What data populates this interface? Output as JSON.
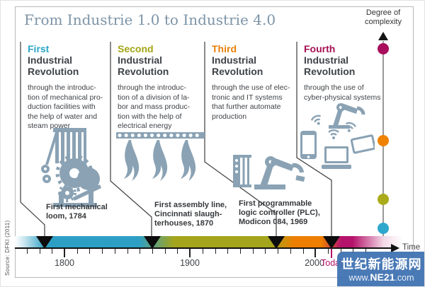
{
  "title": "From Industrie 1.0 to Industrie 4.0",
  "complexity_axis": {
    "label": "Degree of\ncomplexity",
    "dot_colors": [
      "#a90f5c",
      "#ef8200",
      "#aaab1a",
      "#2fa8cd"
    ]
  },
  "revolutions": [
    {
      "ordinal": "First",
      "color": "#2aa5c8",
      "title_rest": "Industrial\nRevolution",
      "description": "through the introduc-\ntion of mechanical pro-\nduction facilities with\nthe help of water and\nsteam power",
      "milestone": "First mechanical\nloom, 1784",
      "icon": "mechanical-loom-icon"
    },
    {
      "ordinal": "Second",
      "color": "#a3a413",
      "title_rest": "Industrial\nRevolution",
      "description": "through the introduc-\ntion of a division of la-\nbor and mass produc-\ntion with the help of\nelectrical energy",
      "milestone": "First assembly line,\nCincinnati slaugh-\nterhouses, 1870",
      "icon": "assembly-line-icon"
    },
    {
      "ordinal": "Third",
      "color": "#e87e04",
      "title_rest": "Industrial\nRevolution",
      "description": "through the use of elec-\ntronic and IT systems\nthat further automate\nproduction",
      "milestone": "First programmable\nlogic controller (PLC),\nModicon 084, 1969",
      "icon": "plc-robot-icon"
    },
    {
      "ordinal": "Fourth",
      "color": "#a50f53",
      "title_rest": "Industrial\nRevolution",
      "description": "through the use of\ncyber-physical systems",
      "milestone": null,
      "icon": "cyber-physical-systems-icon"
    }
  ],
  "timeline": {
    "tick_start_year": 1770,
    "tick_end_year": 2040,
    "tick_step_years": 10,
    "major_years": [
      1800,
      1900,
      2000
    ],
    "today_label": "Today",
    "time_label": "Time",
    "segment_colors": [
      "#2e9fc4",
      "#a4a51c",
      "#ee7e00",
      "#b5136b"
    ]
  },
  "source": "Source: DFKI (2011)",
  "watermark": {
    "name": "世纪新能源网",
    "url_prefix": "www.",
    "url_bold": "NE21",
    "url_suffix": ".com"
  }
}
